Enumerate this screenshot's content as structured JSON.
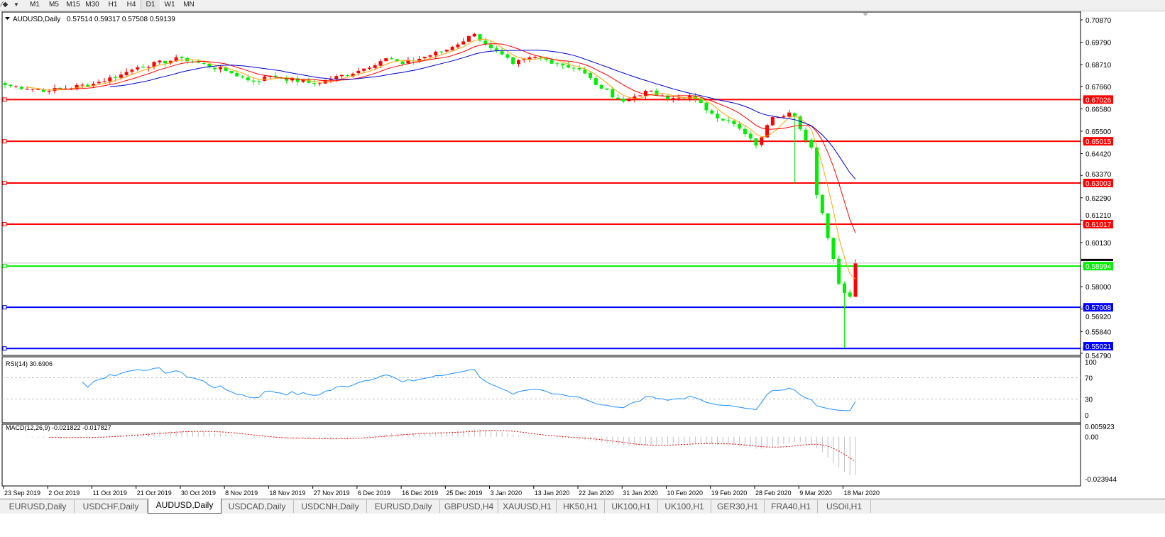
{
  "toolbar": {
    "icons": [
      "line-tool-icon",
      "dropdown-arrow-icon"
    ],
    "timeframes": [
      "M1",
      "M5",
      "M15",
      "M30",
      "H1",
      "H4",
      "D1",
      "W1",
      "MN"
    ],
    "active_timeframe": "D1"
  },
  "chart": {
    "title": "AUDUSD,Daily",
    "ohlc": "0.57514 0.59317 0.57508 0.59139",
    "colors": {
      "bull": "#ff0000",
      "bear": "#00ee00",
      "ma_fast": "#ffa500",
      "ma_mid": "#ff0000",
      "ma_slow": "#0000cc",
      "rsi": "#1e90ff",
      "macd_hist": "#c0c0c0",
      "macd_signal": "#ff0000"
    },
    "price_axis": [
      "0.70870",
      "0.69790",
      "0.68710",
      "0.67660",
      "0.66580",
      "0.65500",
      "0.64420",
      "0.63370",
      "0.62290",
      "0.61210",
      "0.60130",
      "0.58000",
      "0.56920",
      "0.55840",
      "0.54790"
    ],
    "horizontal_lines": [
      {
        "price": "0.67026",
        "color": "#ff0000"
      },
      {
        "price": "0.65015",
        "color": "#ff0000"
      },
      {
        "price": "0.63003",
        "color": "#ff0000"
      },
      {
        "price": "0.61017",
        "color": "#ff0000"
      },
      {
        "price": "0.58994",
        "color": "#00ee00"
      },
      {
        "price": "0.57008",
        "color": "#0000ff"
      },
      {
        "price": "0.55021",
        "color": "#0000ff"
      }
    ],
    "price_path": [
      {
        "date": "2019-09-23",
        "close": 0.6772
      },
      {
        "date": "2019-10-02",
        "close": 0.6745
      },
      {
        "date": "2019-10-11",
        "close": 0.6779
      },
      {
        "date": "2019-10-17",
        "close": 0.6823
      },
      {
        "date": "2019-10-21",
        "close": 0.6858
      },
      {
        "date": "2019-10-30",
        "close": 0.6902
      },
      {
        "date": "2019-11-08",
        "close": 0.6841
      },
      {
        "date": "2019-11-14",
        "close": 0.6789
      },
      {
        "date": "2019-11-18",
        "close": 0.6817
      },
      {
        "date": "2019-11-27",
        "close": 0.6779
      },
      {
        "date": "2019-12-06",
        "close": 0.6841
      },
      {
        "date": "2019-12-12",
        "close": 0.6902
      },
      {
        "date": "2019-12-16",
        "close": 0.6875
      },
      {
        "date": "2019-12-25",
        "close": 0.6943
      },
      {
        "date": "2019-12-31",
        "close": 0.7019
      },
      {
        "date": "2020-01-03",
        "close": 0.695
      },
      {
        "date": "2020-01-08",
        "close": 0.6875
      },
      {
        "date": "2020-01-13",
        "close": 0.6909
      },
      {
        "date": "2020-01-22",
        "close": 0.6848
      },
      {
        "date": "2020-01-27",
        "close": 0.6755
      },
      {
        "date": "2020-01-31",
        "close": 0.6693
      },
      {
        "date": "2020-02-05",
        "close": 0.6745
      },
      {
        "date": "2020-02-10",
        "close": 0.6704
      },
      {
        "date": "2020-02-14",
        "close": 0.6721
      },
      {
        "date": "2020-02-19",
        "close": 0.6635
      },
      {
        "date": "2020-02-24",
        "close": 0.6584
      },
      {
        "date": "2020-02-28",
        "close": 0.6481
      },
      {
        "date": "2020-03-03",
        "close": 0.6618
      },
      {
        "date": "2020-03-06",
        "close": 0.664
      },
      {
        "date": "2020-03-08",
        "close": 0.662,
        "low": 0.63
      },
      {
        "date": "2020-03-09",
        "close": 0.656
      },
      {
        "date": "2020-03-11",
        "close": 0.6471
      },
      {
        "date": "2020-03-12",
        "close": 0.6242
      },
      {
        "date": "2020-03-13",
        "close": 0.6156
      },
      {
        "date": "2020-03-16",
        "close": 0.5934
      },
      {
        "date": "2020-03-17",
        "close": 0.5814
      },
      {
        "date": "2020-03-18",
        "close": 0.577,
        "low": 0.5505
      },
      {
        "date": "2020-03-19",
        "close": 0.5752
      },
      {
        "date": "2020-03-20",
        "open": 0.57514,
        "high": 0.59317,
        "low": 0.57508,
        "close": 0.59139
      }
    ],
    "date_labels": [
      "23 Sep 2019",
      "2 Oct 2019",
      "11 Oct 2019",
      "21 Oct 2019",
      "30 Oct 2019",
      "8 Nov 2019",
      "18 Nov 2019",
      "27 Nov 2019",
      "6 Dec 2019",
      "16 Dec 2019",
      "25 Dec 2019",
      "3 Jan 2020",
      "13 Jan 2020",
      "22 Jan 2020",
      "31 Jan 2020",
      "10 Feb 2020",
      "19 Feb 2020",
      "28 Feb 2020",
      "9 Mar 2020",
      "18 Mar 2020"
    ],
    "date_label_dates": [
      "2019-09-23",
      "2019-10-02",
      "2019-10-11",
      "2019-10-21",
      "2019-10-30",
      "2019-11-08",
      "2019-11-18",
      "2019-11-27",
      "2019-12-06",
      "2019-12-16",
      "2019-12-25",
      "2020-01-03",
      "2020-01-13",
      "2020-01-22",
      "2020-01-31",
      "2020-02-10",
      "2020-02-19",
      "2020-02-28",
      "2020-03-09",
      "2020-03-18"
    ]
  },
  "rsi": {
    "label": "RSI(14) 30.6906",
    "axis": [
      "100",
      "70",
      "30",
      "0"
    ]
  },
  "macd": {
    "label": "MACD(12,26,9) -0.021822 -0.017827",
    "axis": [
      "0.005923",
      "0.00",
      "-0.023944"
    ]
  },
  "tabs": [
    "EURUSD,Daily",
    "USDCHF,Daily",
    "AUDUSD,Daily",
    "USDCAD,Daily",
    "USDCNH,Daily",
    "EURUSD,Daily",
    "GBPUSD,H4",
    "XAUUSD,H1",
    "HK50,H1",
    "UK100,H1",
    "UK100,H1",
    "GER30,H1",
    "FRA40,H1",
    "USOil,H1"
  ],
  "active_tab": 2
}
